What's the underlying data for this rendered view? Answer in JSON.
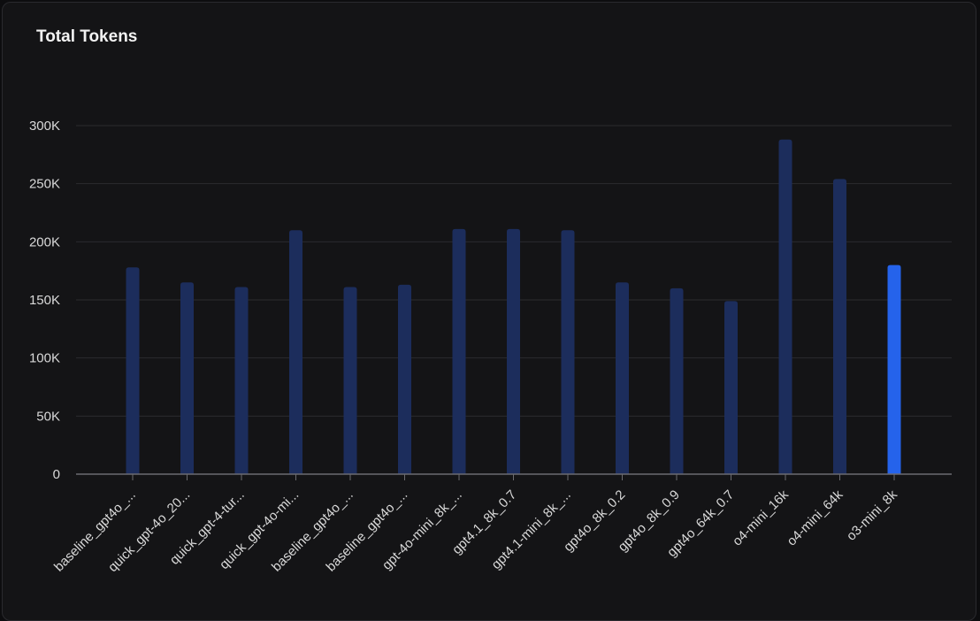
{
  "chart_data": {
    "type": "bar",
    "title": "Total Tokens",
    "xlabel": "",
    "ylabel": "",
    "ylim": [
      0,
      300000
    ],
    "yticks": [
      0,
      50000,
      100000,
      150000,
      200000,
      250000,
      300000
    ],
    "ytick_labels": [
      "0",
      "50K",
      "100K",
      "150K",
      "200K",
      "250K",
      "300K"
    ],
    "grid": true,
    "categories": [
      "baseline_gpt4o_...",
      "quick_gpt-4o_20...",
      "quick_gpt-4-tur...",
      "quick_gpt-4o-mi...",
      "baseline_gpt4o_...",
      "baseline_gpt4o_...",
      "gpt-4o-mini_8k_...",
      "gpt4.1_8k_0.7",
      "gpt4.1-mini_8k_...",
      "gpt4o_8k_0.2",
      "gpt4o_8k_0.9",
      "gpt4o_64k_0.7",
      "o4-mini_16k",
      "o4-mini_64k",
      "o3-mini_8k"
    ],
    "values": [
      178000,
      165000,
      161000,
      210000,
      161000,
      163000,
      211000,
      211000,
      210000,
      165000,
      160000,
      149000,
      288000,
      254000,
      180000
    ],
    "highlight_index": 14,
    "colors": {
      "bar": "#1c2d5c",
      "highlight": "#2563eb",
      "grid": "#2b2b2f",
      "axis": "#6b6b70"
    }
  }
}
